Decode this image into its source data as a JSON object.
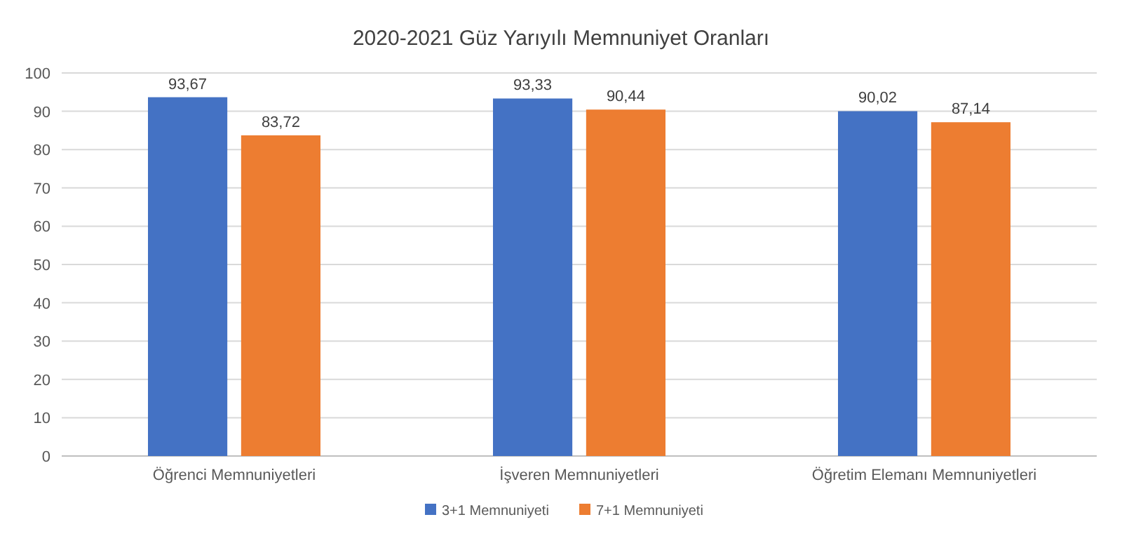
{
  "chart_data": {
    "type": "bar",
    "title": "2020-2021 Güz Yarıyılı Memnuniyet Oranları",
    "categories": [
      "Öğrenci Memnuniyetleri",
      "İşveren Memnuniyetleri",
      "Öğretim Elemanı Memnuniyetleri"
    ],
    "series": [
      {
        "name": "3+1 Memnuniyeti",
        "color": "#4472c4",
        "values": [
          93.67,
          93.33,
          90.02
        ],
        "value_labels": [
          "93,67",
          "93,33",
          "90,02"
        ]
      },
      {
        "name": "7+1 Memnuniyeti",
        "color": "#ed7d31",
        "values": [
          83.72,
          90.44,
          87.14
        ],
        "value_labels": [
          "83,72",
          "90,44",
          "87,14"
        ]
      }
    ],
    "ylim": [
      0,
      100
    ],
    "yticks": [
      0,
      10,
      20,
      30,
      40,
      50,
      60,
      70,
      80,
      90,
      100
    ],
    "grid": "y",
    "legend": "bottom"
  }
}
